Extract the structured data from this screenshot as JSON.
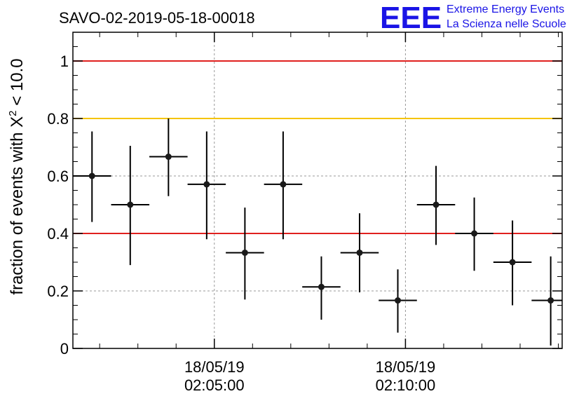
{
  "header": {
    "title": "SAVO-02-2019-05-18-00018",
    "logo_text": "EEE",
    "logo_line1": "Extreme Energy Events",
    "logo_line2": "La Scienza nelle Scuole",
    "logo_color": "#1a14e6"
  },
  "chart_data": {
    "type": "scatter",
    "title": "SAVO-02-2019-05-18-00018",
    "xlabel": "",
    "ylabel_prefix": "fraction of events with ",
    "ylabel_symbol": "X",
    "ylabel_exponent": "2",
    "ylabel_suffix": " < 10.0",
    "ylim": [
      0,
      1.1
    ],
    "xlim_minutes": [
      0,
      12.8
    ],
    "x_ticks": [
      {
        "date": "18/05/19",
        "time": "02:05:00",
        "minute": 3.7
      },
      {
        "date": "18/05/19",
        "time": "02:10:00",
        "minute": 8.7
      }
    ],
    "y_ticks": [
      {
        "value": 0,
        "label": "0"
      },
      {
        "value": 0.2,
        "label": "0.2"
      },
      {
        "value": 0.4,
        "label": "0.4"
      },
      {
        "value": 0.6,
        "label": "0.6"
      },
      {
        "value": 0.8,
        "label": "0.8"
      },
      {
        "value": 1,
        "label": "1"
      }
    ],
    "grid": true,
    "reference_lines": [
      {
        "y": 1.0,
        "color": "#e0201e"
      },
      {
        "y": 0.8,
        "color": "#f5c400"
      },
      {
        "y": 0.4,
        "color": "#e0201e"
      }
    ],
    "points": [
      {
        "x": 0.5,
        "y": 0.6,
        "err_low": 0.44,
        "err_high": 0.755
      },
      {
        "x": 1.5,
        "y": 0.5,
        "err_low": 0.29,
        "err_high": 0.705
      },
      {
        "x": 2.5,
        "y": 0.667,
        "err_low": 0.53,
        "err_high": 0.8
      },
      {
        "x": 3.5,
        "y": 0.571,
        "err_low": 0.38,
        "err_high": 0.755
      },
      {
        "x": 4.5,
        "y": 0.333,
        "err_low": 0.17,
        "err_high": 0.49
      },
      {
        "x": 5.5,
        "y": 0.571,
        "err_low": 0.38,
        "err_high": 0.755
      },
      {
        "x": 6.5,
        "y": 0.214,
        "err_low": 0.1,
        "err_high": 0.32
      },
      {
        "x": 7.5,
        "y": 0.333,
        "err_low": 0.195,
        "err_high": 0.47
      },
      {
        "x": 8.5,
        "y": 0.167,
        "err_low": 0.055,
        "err_high": 0.275
      },
      {
        "x": 9.5,
        "y": 0.5,
        "err_low": 0.36,
        "err_high": 0.635
      },
      {
        "x": 10.5,
        "y": 0.4,
        "err_low": 0.27,
        "err_high": 0.525
      },
      {
        "x": 11.5,
        "y": 0.3,
        "err_low": 0.15,
        "err_high": 0.445
      },
      {
        "x": 12.5,
        "y": 0.167,
        "err_low": 0.01,
        "err_high": 0.32
      }
    ],
    "x_half_width_minutes": 0.5,
    "marker_color": "#1a1a1a"
  }
}
